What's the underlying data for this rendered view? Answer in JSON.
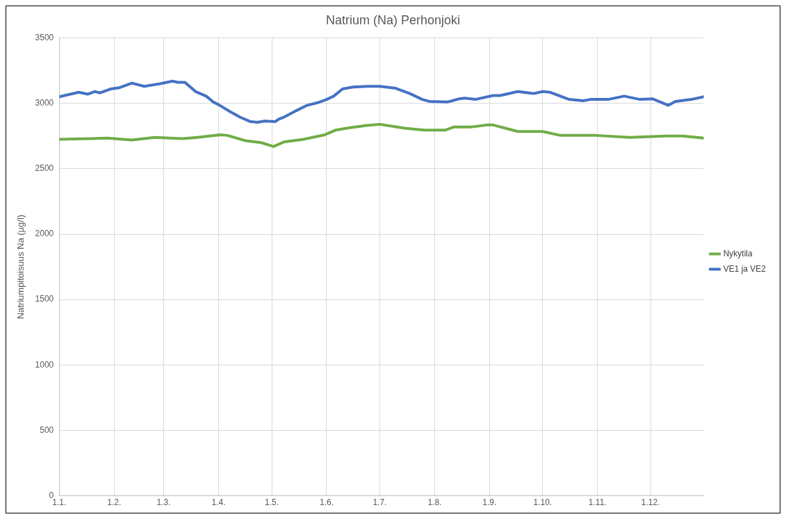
{
  "chart_data": {
    "type": "line",
    "title": "Natrium (Na) Perhonjoki",
    "ylabel": "Natriumpitoisuus Na (µg/l)",
    "xlim": [
      "--01-01",
      "--12-31"
    ],
    "xticks": [
      {
        "value": "--01-01",
        "label": "1.1."
      },
      {
        "value": "--02-01",
        "label": "1.2."
      },
      {
        "value": "--03-01",
        "label": "1.3."
      },
      {
        "value": "--04-01",
        "label": "1.4."
      },
      {
        "value": "--05-01",
        "label": "1.5."
      },
      {
        "value": "--06-01",
        "label": "1.6."
      },
      {
        "value": "--07-01",
        "label": "1.7."
      },
      {
        "value": "--08-01",
        "label": "1.8."
      },
      {
        "value": "--09-01",
        "label": "1.9."
      },
      {
        "value": "--10-01",
        "label": "1.10."
      },
      {
        "value": "--11-01",
        "label": "1.11."
      },
      {
        "value": "--12-01",
        "label": "1.12."
      }
    ],
    "ylim": [
      0,
      3500
    ],
    "yticks": [
      0,
      500,
      1000,
      1500,
      2000,
      2500,
      3000,
      3500
    ],
    "grid": true,
    "legend": "right",
    "marker": "none",
    "line_style": "solid",
    "series": [
      {
        "name": "Nykytila",
        "color": "#70ad47",
        "x": [
          "--01-01",
          "--01-19",
          "--01-28",
          "--02-11",
          "--02-24",
          "--03-12",
          "--03-20",
          "--04-02",
          "--04-06",
          "--04-16",
          "--04-25",
          "--05-02",
          "--05-08",
          "--05-19",
          "--05-31",
          "--06-06",
          "--06-15",
          "--06-23",
          "--07-01",
          "--07-15",
          "--07-26",
          "--08-07",
          "--08-12",
          "--08-22",
          "--08-31",
          "--09-03",
          "--09-17",
          "--10-01",
          "--10-11",
          "--10-31",
          "--11-19",
          "--12-10",
          "--12-19",
          "--12-31"
        ],
        "values": [
          2725,
          2730,
          2735,
          2720,
          2740,
          2730,
          2740,
          2760,
          2755,
          2715,
          2700,
          2670,
          2705,
          2725,
          2760,
          2795,
          2815,
          2830,
          2840,
          2810,
          2795,
          2795,
          2820,
          2820,
          2835,
          2835,
          2785,
          2785,
          2755,
          2755,
          2740,
          2750,
          2750,
          2735
        ]
      },
      {
        "name": "VE1 ja VE2",
        "color": "#4472c4",
        "x": [
          "--01-01",
          "--01-12",
          "--01-17",
          "--01-21",
          "--01-24",
          "--01-30",
          "--02-04",
          "--02-11",
          "--02-18",
          "--02-27",
          "--03-06",
          "--03-09",
          "--03-13",
          "--03-19",
          "--03-25",
          "--03-29",
          "--04-01",
          "--04-07",
          "--04-13",
          "--04-19",
          "--04-23",
          "--04-27",
          "--05-03",
          "--05-05",
          "--05-08",
          "--05-15",
          "--05-21",
          "--05-27",
          "--06-01",
          "--06-05",
          "--06-10",
          "--06-16",
          "--06-24",
          "--07-01",
          "--07-10",
          "--07-18",
          "--07-25",
          "--07-29",
          "--08-08",
          "--08-11",
          "--08-15",
          "--08-18",
          "--08-24",
          "--09-03",
          "--09-07",
          "--09-17",
          "--09-26",
          "--10-01",
          "--10-05",
          "--10-16",
          "--10-24",
          "--10-28",
          "--11-07",
          "--11-16",
          "--11-25",
          "--12-02",
          "--12-11",
          "--12-15",
          "--12-24",
          "--12-31"
        ],
        "values": [
          3050,
          3085,
          3070,
          3090,
          3080,
          3110,
          3120,
          3155,
          3130,
          3150,
          3170,
          3160,
          3160,
          3090,
          3055,
          3010,
          2990,
          2940,
          2895,
          2860,
          2855,
          2865,
          2860,
          2880,
          2895,
          2945,
          2985,
          3005,
          3030,
          3055,
          3110,
          3125,
          3130,
          3130,
          3115,
          3075,
          3030,
          3015,
          3010,
          3020,
          3035,
          3040,
          3030,
          3060,
          3060,
          3090,
          3075,
          3090,
          3085,
          3030,
          3020,
          3030,
          3030,
          3055,
          3030,
          3035,
          2985,
          3015,
          3030,
          3050
        ]
      }
    ]
  }
}
